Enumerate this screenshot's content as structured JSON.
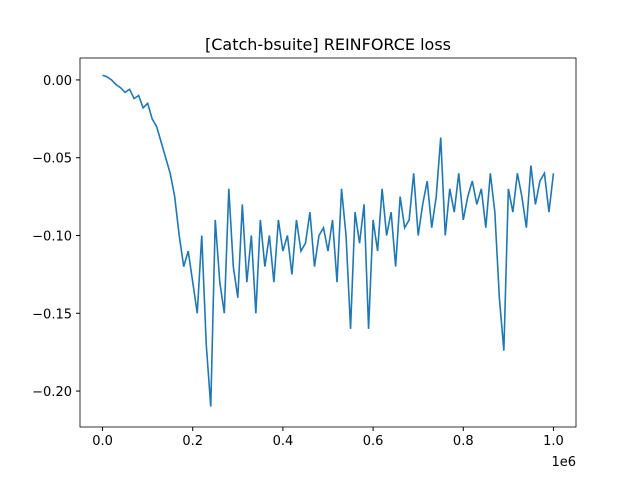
{
  "chart_data": {
    "type": "line",
    "title": "[Catch-bsuite] REINFORCE loss",
    "x_offset_label": "1e6",
    "xlim": [
      -50000,
      1050000
    ],
    "ylim": [
      -0.2231,
      0.0141
    ],
    "xticks": [
      {
        "value": 0,
        "label": "0.0"
      },
      {
        "value": 200000,
        "label": "0.2"
      },
      {
        "value": 400000,
        "label": "0.4"
      },
      {
        "value": 600000,
        "label": "0.6"
      },
      {
        "value": 800000,
        "label": "0.8"
      },
      {
        "value": 1000000,
        "label": "1.0"
      }
    ],
    "yticks": [
      {
        "value": 0,
        "label": "0.00"
      },
      {
        "value": -0.05,
        "label": "−0.05"
      },
      {
        "value": -0.1,
        "label": "−0.10"
      },
      {
        "value": -0.15,
        "label": "−0.15"
      },
      {
        "value": -0.2,
        "label": "−0.20"
      }
    ],
    "series": [
      {
        "color": "#1f77b4",
        "x": [
          0,
          10000,
          20000,
          30000,
          40000,
          50000,
          60000,
          70000,
          80000,
          90000,
          100000,
          110000,
          120000,
          130000,
          140000,
          150000,
          160000,
          170000,
          180000,
          190000,
          200000,
          210000,
          220000,
          230000,
          240000,
          250000,
          260000,
          270000,
          280000,
          290000,
          300000,
          310000,
          320000,
          330000,
          340000,
          350000,
          360000,
          370000,
          380000,
          390000,
          400000,
          410000,
          420000,
          430000,
          440000,
          450000,
          460000,
          470000,
          480000,
          490000,
          500000,
          510000,
          520000,
          530000,
          540000,
          550000,
          560000,
          570000,
          580000,
          590000,
          600000,
          610000,
          620000,
          630000,
          640000,
          650000,
          660000,
          670000,
          680000,
          690000,
          700000,
          710000,
          720000,
          730000,
          740000,
          750000,
          760000,
          770000,
          780000,
          790000,
          800000,
          810000,
          820000,
          830000,
          840000,
          850000,
          860000,
          870000,
          880000,
          890000,
          900000,
          910000,
          920000,
          930000,
          940000,
          950000,
          960000,
          970000,
          980000,
          990000,
          1000000
        ],
        "values": [
          0.003,
          0.002,
          0.0,
          -0.003,
          -0.005,
          -0.008,
          -0.006,
          -0.012,
          -0.01,
          -0.018,
          -0.015,
          -0.025,
          -0.03,
          -0.04,
          -0.05,
          -0.06,
          -0.075,
          -0.1,
          -0.12,
          -0.11,
          -0.13,
          -0.15,
          -0.1,
          -0.17,
          -0.21,
          -0.09,
          -0.13,
          -0.15,
          -0.07,
          -0.12,
          -0.14,
          -0.08,
          -0.13,
          -0.1,
          -0.15,
          -0.09,
          -0.12,
          -0.1,
          -0.13,
          -0.09,
          -0.11,
          -0.1,
          -0.125,
          -0.09,
          -0.11,
          -0.105,
          -0.085,
          -0.12,
          -0.1,
          -0.095,
          -0.11,
          -0.09,
          -0.13,
          -0.07,
          -0.1,
          -0.16,
          -0.085,
          -0.105,
          -0.08,
          -0.16,
          -0.09,
          -0.11,
          -0.07,
          -0.1,
          -0.085,
          -0.12,
          -0.075,
          -0.095,
          -0.09,
          -0.06,
          -0.1,
          -0.08,
          -0.065,
          -0.095,
          -0.075,
          -0.037,
          -0.1,
          -0.07,
          -0.085,
          -0.06,
          -0.09,
          -0.075,
          -0.065,
          -0.08,
          -0.07,
          -0.095,
          -0.06,
          -0.085,
          -0.14,
          -0.174,
          -0.07,
          -0.085,
          -0.06,
          -0.075,
          -0.095,
          -0.055,
          -0.08,
          -0.065,
          -0.06,
          -0.085,
          -0.06
        ]
      }
    ]
  }
}
